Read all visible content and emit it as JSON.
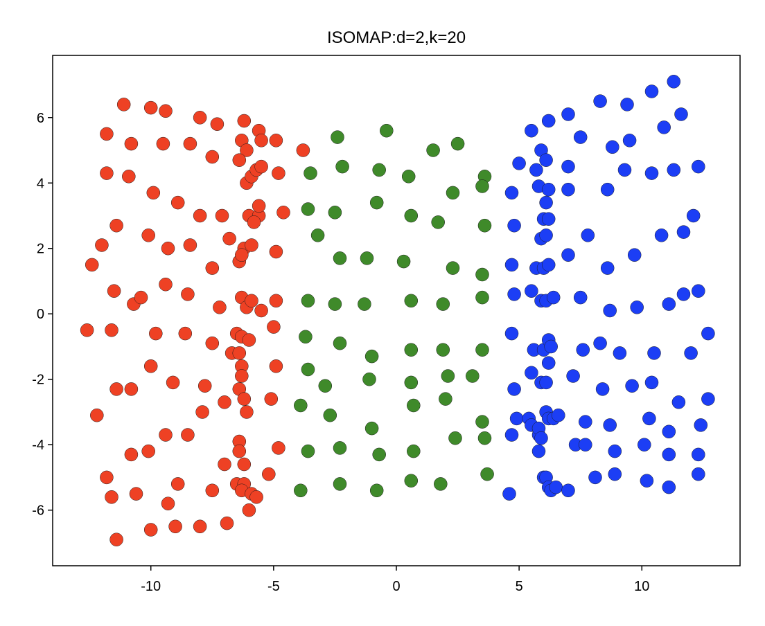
{
  "chart_data": {
    "type": "scatter",
    "title": "ISOMAP:d=2,k=20",
    "xlabel": "",
    "ylabel": "",
    "xlim": [
      -14,
      14
    ],
    "ylim": [
      -7.7,
      7.9
    ],
    "x_ticks": [
      -10,
      -5,
      0,
      5,
      10
    ],
    "y_ticks": [
      -6,
      -4,
      -2,
      0,
      2,
      4,
      6
    ],
    "x_tick_labels": [
      "-10",
      "-5",
      "0",
      "5",
      "10"
    ],
    "y_tick_labels": [
      "-6",
      "-4",
      "-2",
      "0",
      "2",
      "4",
      "6"
    ],
    "grid": false,
    "legend": "none",
    "series": [
      {
        "color": "#ee4124",
        "points": [
          [
            -11.1,
            6.4
          ],
          [
            -10.0,
            6.3
          ],
          [
            -9.4,
            6.2
          ],
          [
            -8.0,
            6.0
          ],
          [
            -7.3,
            5.8
          ],
          [
            -6.2,
            5.9
          ],
          [
            -11.8,
            5.5
          ],
          [
            -10.8,
            5.2
          ],
          [
            -9.5,
            5.2
          ],
          [
            -8.4,
            5.2
          ],
          [
            -7.5,
            4.8
          ],
          [
            -6.3,
            5.3
          ],
          [
            -6.1,
            5.0
          ],
          [
            -5.6,
            5.6
          ],
          [
            -5.5,
            5.3
          ],
          [
            -4.9,
            5.3
          ],
          [
            -3.8,
            5.0
          ],
          [
            -6.4,
            4.7
          ],
          [
            -11.8,
            4.3
          ],
          [
            -10.9,
            4.2
          ],
          [
            -9.9,
            3.7
          ],
          [
            -8.9,
            3.4
          ],
          [
            -8.0,
            3.0
          ],
          [
            -7.1,
            3.0
          ],
          [
            -6.1,
            4.0
          ],
          [
            -5.9,
            4.2
          ],
          [
            -5.7,
            4.4
          ],
          [
            -5.5,
            4.5
          ],
          [
            -4.8,
            4.3
          ],
          [
            -4.6,
            3.1
          ],
          [
            -11.4,
            2.7
          ],
          [
            -12.0,
            2.1
          ],
          [
            -10.1,
            2.4
          ],
          [
            -9.3,
            2.0
          ],
          [
            -8.4,
            2.1
          ],
          [
            -6.8,
            2.3
          ],
          [
            -6.0,
            3.0
          ],
          [
            -5.6,
            3.0
          ],
          [
            -5.8,
            2.8
          ],
          [
            -5.6,
            3.3
          ],
          [
            -6.2,
            2.0
          ],
          [
            -5.9,
            2.1
          ],
          [
            -12.4,
            1.5
          ],
          [
            -7.5,
            1.4
          ],
          [
            -6.4,
            1.6
          ],
          [
            -6.3,
            1.8
          ],
          [
            -4.9,
            1.9
          ],
          [
            -11.5,
            0.7
          ],
          [
            -10.7,
            0.3
          ],
          [
            -10.4,
            0.5
          ],
          [
            -9.4,
            0.9
          ],
          [
            -8.5,
            0.6
          ],
          [
            -7.2,
            0.2
          ],
          [
            -6.3,
            0.5
          ],
          [
            -6.1,
            0.2
          ],
          [
            -5.9,
            0.4
          ],
          [
            -5.5,
            0.1
          ],
          [
            -4.9,
            0.4
          ],
          [
            -12.6,
            -0.5
          ],
          [
            -11.6,
            -0.5
          ],
          [
            -9.8,
            -0.6
          ],
          [
            -8.6,
            -0.6
          ],
          [
            -7.5,
            -0.9
          ],
          [
            -6.5,
            -0.6
          ],
          [
            -6.3,
            -0.7
          ],
          [
            -6.0,
            -0.8
          ],
          [
            -5.0,
            -0.4
          ],
          [
            -6.7,
            -1.2
          ],
          [
            -6.4,
            -1.2
          ],
          [
            -6.3,
            -1.6
          ],
          [
            -4.9,
            -1.6
          ],
          [
            -10.0,
            -1.6
          ],
          [
            -11.4,
            -2.3
          ],
          [
            -10.8,
            -2.3
          ],
          [
            -9.1,
            -2.1
          ],
          [
            -7.8,
            -2.2
          ],
          [
            -7.0,
            -2.7
          ],
          [
            -6.4,
            -2.3
          ],
          [
            -6.2,
            -2.6
          ],
          [
            -6.3,
            -1.9
          ],
          [
            -6.1,
            -3.0
          ],
          [
            -5.1,
            -2.6
          ],
          [
            -12.2,
            -3.1
          ],
          [
            -7.9,
            -3.0
          ],
          [
            -9.4,
            -3.7
          ],
          [
            -8.5,
            -3.7
          ],
          [
            -6.4,
            -3.9
          ],
          [
            -6.4,
            -4.2
          ],
          [
            -4.8,
            -4.1
          ],
          [
            -10.8,
            -4.3
          ],
          [
            -10.1,
            -4.2
          ],
          [
            -7.0,
            -4.6
          ],
          [
            -6.2,
            -4.6
          ],
          [
            -11.8,
            -5.0
          ],
          [
            -11.6,
            -5.6
          ],
          [
            -10.6,
            -5.5
          ],
          [
            -9.3,
            -5.8
          ],
          [
            -8.9,
            -5.2
          ],
          [
            -7.5,
            -5.4
          ],
          [
            -6.5,
            -5.2
          ],
          [
            -6.2,
            -5.2
          ],
          [
            -6.3,
            -5.4
          ],
          [
            -5.9,
            -5.5
          ],
          [
            -5.7,
            -5.6
          ],
          [
            -5.2,
            -4.9
          ],
          [
            -11.4,
            -6.9
          ],
          [
            -10.0,
            -6.6
          ],
          [
            -9.0,
            -6.5
          ],
          [
            -8.0,
            -6.5
          ],
          [
            -6.9,
            -6.4
          ],
          [
            -6.0,
            -6.0
          ]
        ]
      },
      {
        "color": "#3f8a2a",
        "points": [
          [
            -2.4,
            5.4
          ],
          [
            -0.4,
            5.6
          ],
          [
            1.5,
            5.0
          ],
          [
            2.5,
            5.2
          ],
          [
            -3.5,
            4.3
          ],
          [
            -2.2,
            4.5
          ],
          [
            -0.7,
            4.4
          ],
          [
            0.5,
            4.2
          ],
          [
            3.6,
            4.2
          ],
          [
            3.5,
            3.9
          ],
          [
            -3.6,
            3.2
          ],
          [
            -2.5,
            3.1
          ],
          [
            -0.8,
            3.4
          ],
          [
            0.6,
            3.0
          ],
          [
            1.7,
            2.8
          ],
          [
            2.3,
            3.7
          ],
          [
            3.6,
            2.7
          ],
          [
            -3.2,
            2.4
          ],
          [
            -2.3,
            1.7
          ],
          [
            -1.2,
            1.7
          ],
          [
            0.3,
            1.6
          ],
          [
            2.3,
            1.4
          ],
          [
            3.5,
            1.2
          ],
          [
            -3.6,
            0.4
          ],
          [
            -2.5,
            0.3
          ],
          [
            -1.3,
            0.3
          ],
          [
            0.6,
            0.4
          ],
          [
            1.9,
            0.3
          ],
          [
            3.5,
            0.5
          ],
          [
            -3.7,
            -0.7
          ],
          [
            -2.3,
            -0.9
          ],
          [
            -1.0,
            -1.3
          ],
          [
            0.6,
            -1.1
          ],
          [
            1.9,
            -1.1
          ],
          [
            3.5,
            -1.1
          ],
          [
            -3.6,
            -1.7
          ],
          [
            -2.9,
            -2.2
          ],
          [
            -1.1,
            -2.0
          ],
          [
            0.6,
            -2.1
          ],
          [
            2.1,
            -1.9
          ],
          [
            3.1,
            -1.9
          ],
          [
            -3.9,
            -2.8
          ],
          [
            -2.7,
            -3.1
          ],
          [
            -1.0,
            -3.5
          ],
          [
            0.7,
            -2.8
          ],
          [
            2.0,
            -2.6
          ],
          [
            3.5,
            -3.3
          ],
          [
            -3.6,
            -4.2
          ],
          [
            -2.3,
            -4.1
          ],
          [
            -0.7,
            -4.3
          ],
          [
            0.7,
            -4.2
          ],
          [
            2.4,
            -3.8
          ],
          [
            3.6,
            -3.8
          ],
          [
            -3.9,
            -5.4
          ],
          [
            -2.3,
            -5.2
          ],
          [
            -0.8,
            -5.4
          ],
          [
            0.6,
            -5.1
          ],
          [
            1.8,
            -5.2
          ],
          [
            3.7,
            -4.9
          ]
        ]
      },
      {
        "color": "#1c3ef5",
        "points": [
          [
            11.3,
            7.1
          ],
          [
            10.4,
            6.8
          ],
          [
            8.3,
            6.5
          ],
          [
            9.4,
            6.4
          ],
          [
            11.6,
            6.1
          ],
          [
            7.0,
            6.1
          ],
          [
            6.2,
            5.9
          ],
          [
            5.5,
            5.6
          ],
          [
            7.5,
            5.4
          ],
          [
            10.9,
            5.7
          ],
          [
            8.8,
            5.1
          ],
          [
            9.5,
            5.3
          ],
          [
            5.9,
            5.0
          ],
          [
            5.0,
            4.6
          ],
          [
            6.1,
            4.7
          ],
          [
            7.0,
            4.5
          ],
          [
            5.7,
            4.4
          ],
          [
            9.3,
            4.4
          ],
          [
            10.4,
            4.3
          ],
          [
            11.3,
            4.4
          ],
          [
            12.3,
            4.5
          ],
          [
            4.7,
            3.7
          ],
          [
            5.8,
            3.9
          ],
          [
            6.2,
            3.8
          ],
          [
            7.0,
            3.8
          ],
          [
            8.6,
            3.8
          ],
          [
            6.1,
            3.4
          ],
          [
            12.1,
            3.0
          ],
          [
            4.8,
            2.7
          ],
          [
            6.0,
            2.9
          ],
          [
            6.2,
            2.9
          ],
          [
            5.9,
            2.3
          ],
          [
            6.1,
            2.4
          ],
          [
            7.8,
            2.4
          ],
          [
            10.8,
            2.4
          ],
          [
            11.7,
            2.5
          ],
          [
            4.7,
            1.5
          ],
          [
            5.7,
            1.4
          ],
          [
            6.0,
            1.4
          ],
          [
            6.2,
            1.5
          ],
          [
            7.0,
            1.8
          ],
          [
            8.6,
            1.4
          ],
          [
            9.7,
            1.8
          ],
          [
            4.8,
            0.6
          ],
          [
            5.5,
            0.7
          ],
          [
            5.9,
            0.4
          ],
          [
            6.1,
            0.4
          ],
          [
            6.4,
            0.5
          ],
          [
            7.5,
            0.5
          ],
          [
            8.7,
            0.1
          ],
          [
            9.8,
            0.2
          ],
          [
            11.1,
            0.3
          ],
          [
            11.7,
            0.6
          ],
          [
            12.3,
            0.7
          ],
          [
            4.7,
            -0.6
          ],
          [
            5.6,
            -1.1
          ],
          [
            6.0,
            -1.1
          ],
          [
            6.2,
            -0.8
          ],
          [
            6.3,
            -1.0
          ],
          [
            6.2,
            -1.5
          ],
          [
            7.6,
            -1.1
          ],
          [
            8.3,
            -0.9
          ],
          [
            9.1,
            -1.2
          ],
          [
            10.5,
            -1.2
          ],
          [
            12.0,
            -1.2
          ],
          [
            12.7,
            -0.6
          ],
          [
            4.8,
            -2.3
          ],
          [
            5.5,
            -1.8
          ],
          [
            5.9,
            -2.1
          ],
          [
            6.1,
            -2.1
          ],
          [
            7.2,
            -1.9
          ],
          [
            8.4,
            -2.3
          ],
          [
            9.6,
            -2.2
          ],
          [
            10.4,
            -2.1
          ],
          [
            11.5,
            -2.7
          ],
          [
            12.7,
            -2.6
          ],
          [
            4.9,
            -3.2
          ],
          [
            5.4,
            -3.2
          ],
          [
            5.5,
            -3.4
          ],
          [
            5.8,
            -3.7
          ],
          [
            6.1,
            -3.0
          ],
          [
            6.2,
            -3.2
          ],
          [
            6.4,
            -3.2
          ],
          [
            6.6,
            -3.1
          ],
          [
            5.8,
            -3.5
          ],
          [
            5.9,
            -3.8
          ],
          [
            5.8,
            -4.2
          ],
          [
            4.7,
            -3.7
          ],
          [
            7.7,
            -3.3
          ],
          [
            8.7,
            -3.4
          ],
          [
            10.3,
            -3.2
          ],
          [
            11.1,
            -3.6
          ],
          [
            12.4,
            -3.4
          ],
          [
            7.3,
            -4.0
          ],
          [
            7.7,
            -4.0
          ],
          [
            8.9,
            -4.2
          ],
          [
            10.1,
            -4.0
          ],
          [
            11.1,
            -4.3
          ],
          [
            12.3,
            -4.3
          ],
          [
            4.6,
            -5.5
          ],
          [
            6.0,
            -5.0
          ],
          [
            6.1,
            -5.0
          ],
          [
            6.2,
            -5.3
          ],
          [
            6.3,
            -5.4
          ],
          [
            6.5,
            -5.3
          ],
          [
            7.0,
            -5.4
          ],
          [
            8.1,
            -5.0
          ],
          [
            8.9,
            -4.9
          ],
          [
            10.2,
            -5.1
          ],
          [
            11.1,
            -5.3
          ],
          [
            12.3,
            -4.9
          ]
        ]
      }
    ]
  }
}
